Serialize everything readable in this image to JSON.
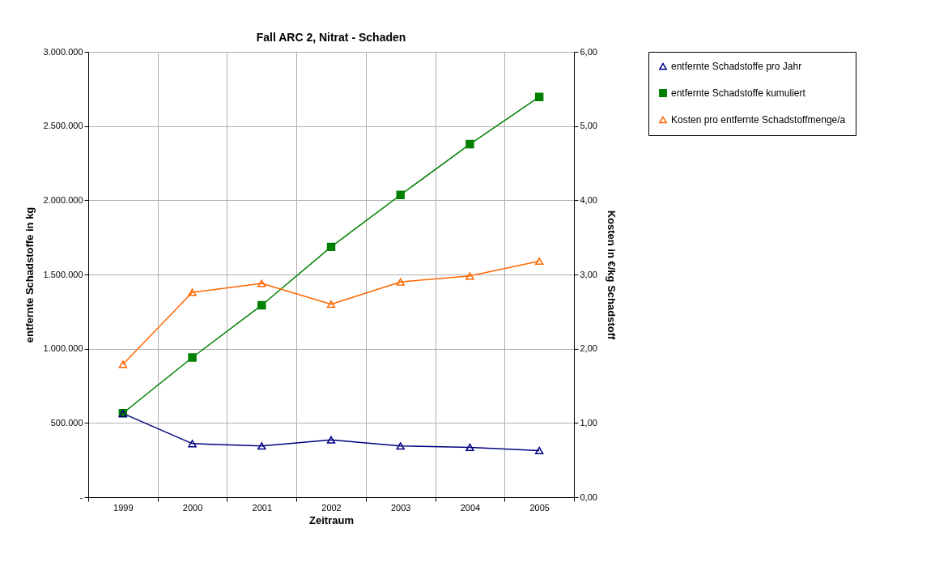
{
  "chart_data": {
    "type": "line",
    "title": "Fall ARC 2, Nitrat - Schaden",
    "xlabel": "Zeitraum",
    "ylabel": "entfernte Schadstoffe in kg",
    "y2label": "Kosten in €/kg Schadstoff",
    "categories": [
      "1999",
      "2000",
      "2001",
      "2002",
      "2003",
      "2004",
      "2005"
    ],
    "series": [
      {
        "name": "entfernte Schadstoffe pro Jahr",
        "color": "#000080",
        "marker": "triangle",
        "values": [
          564000,
          361000,
          345000,
          386000,
          345000,
          336000,
          314000
        ]
      },
      {
        "name": "entfernte Schadstoffe kumuliert",
        "color": "#008000",
        "marker": "square",
        "values": [
          566000,
          941000,
          1293000,
          1686000,
          2036000,
          2378000,
          2696000
        ]
      },
      {
        "name": "Kosten pro entfernte Schadstoffmenge/a",
        "color": "#ff6600",
        "marker": "triangle",
        "axis": "y2",
        "values": [
          1.79,
          2.76,
          2.88,
          2.6,
          2.9,
          2.98,
          3.18
        ]
      }
    ],
    "ylim": [
      0,
      3000000
    ],
    "yticks": [
      {
        "value": 0,
        "label": "-"
      },
      {
        "value": 500000,
        "label": "500.000"
      },
      {
        "value": 1000000,
        "label": "1.000.000"
      },
      {
        "value": 1500000,
        "label": "1.500.000"
      },
      {
        "value": 2000000,
        "label": "2.000.000"
      },
      {
        "value": 2500000,
        "label": "2.500.000"
      },
      {
        "value": 3000000,
        "label": "3.000.000"
      }
    ],
    "y2lim": [
      0,
      6
    ],
    "y2ticks": [
      {
        "value": 0,
        "label": "0,00"
      },
      {
        "value": 1,
        "label": "1,00"
      },
      {
        "value": 2,
        "label": "2,00"
      },
      {
        "value": 3,
        "label": "3,00"
      },
      {
        "value": 4,
        "label": "4,00"
      },
      {
        "value": 5,
        "label": "5,00"
      },
      {
        "value": 6,
        "label": "6,00"
      }
    ],
    "grid": true,
    "legend": "right",
    "line_style": "solid"
  }
}
